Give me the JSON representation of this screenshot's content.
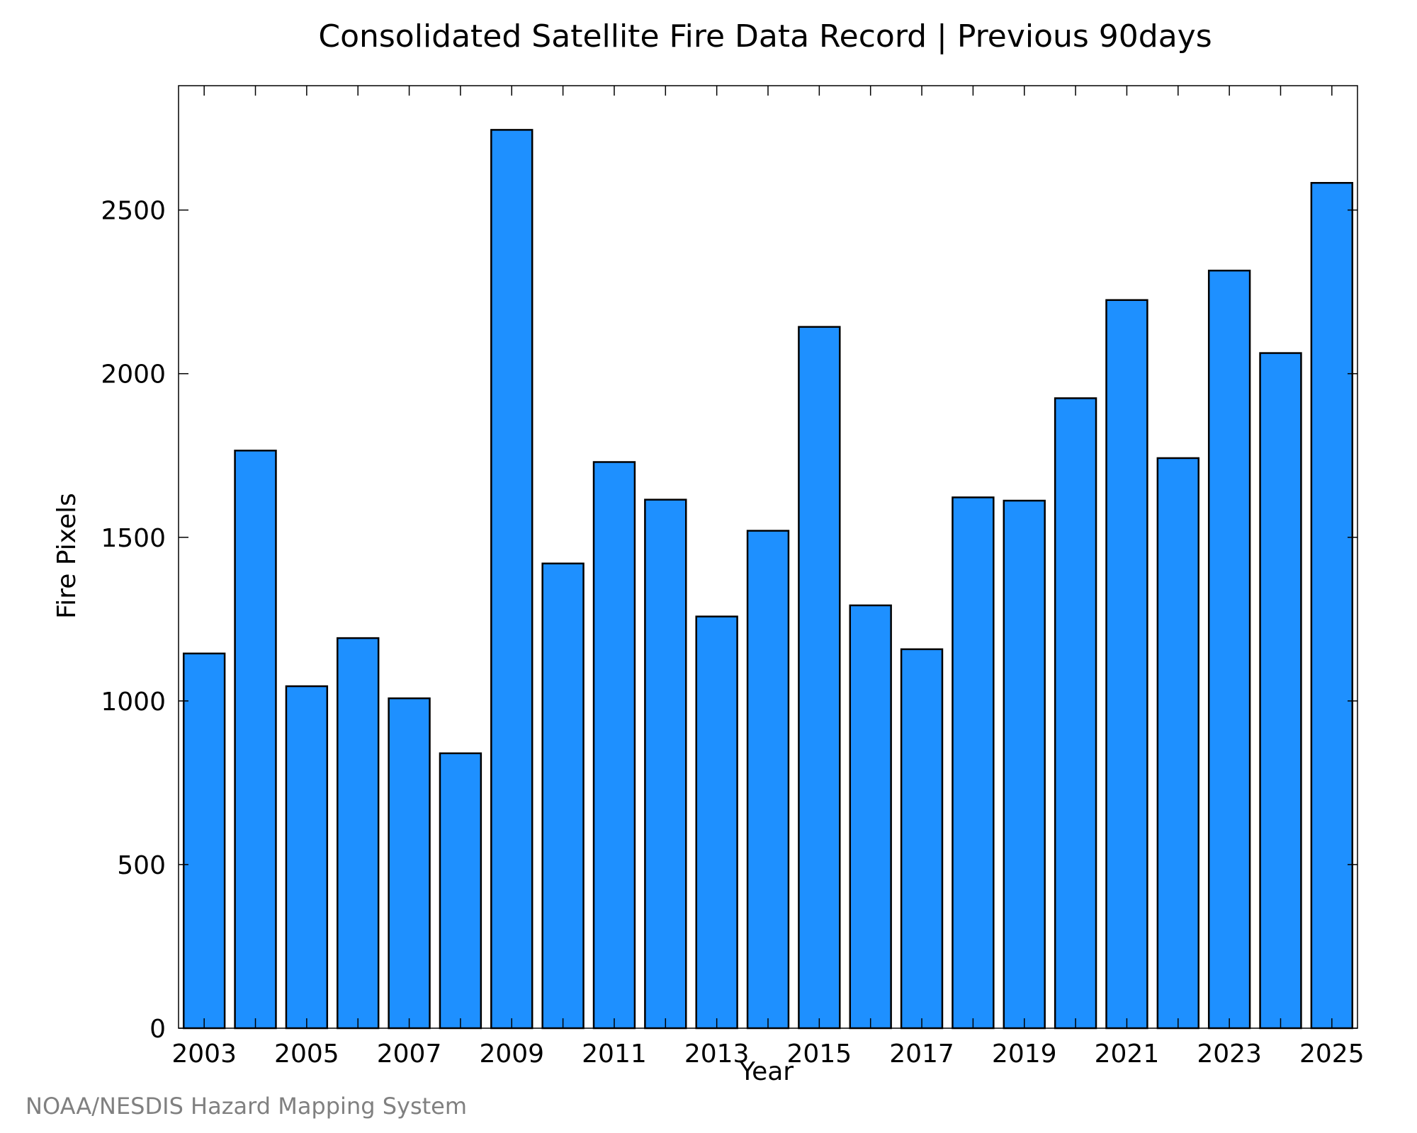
{
  "chart_data": {
    "type": "bar",
    "title": "Consolidated Satellite Fire Data Record | Previous 90days",
    "xlabel": "Year",
    "ylabel": "Fire Pixels",
    "categories": [
      "2003",
      "2004",
      "2005",
      "2006",
      "2007",
      "2008",
      "2009",
      "2010",
      "2011",
      "2012",
      "2013",
      "2014",
      "2015",
      "2016",
      "2017",
      "2018",
      "2019",
      "2020",
      "2021",
      "2022",
      "2023",
      "2024",
      "2025"
    ],
    "values": [
      1145,
      1765,
      1045,
      1192,
      1008,
      840,
      2745,
      1420,
      1730,
      1615,
      1258,
      1520,
      2143,
      1292,
      1158,
      1622,
      1612,
      1925,
      2225,
      1742,
      2315,
      2063,
      2583
    ],
    "x_tick_labels": [
      "2003",
      "2005",
      "2007",
      "2009",
      "2011",
      "2013",
      "2015",
      "2017",
      "2019",
      "2021",
      "2023",
      "2025"
    ],
    "y_ticks": [
      0,
      500,
      1000,
      1500,
      2000,
      2500
    ],
    "ylim": [
      0,
      2880
    ],
    "grid": false,
    "bar_color": "#1e90ff",
    "bar_edge_color": "#000000"
  },
  "credit": "NOAA/NESDIS Hazard Mapping System"
}
